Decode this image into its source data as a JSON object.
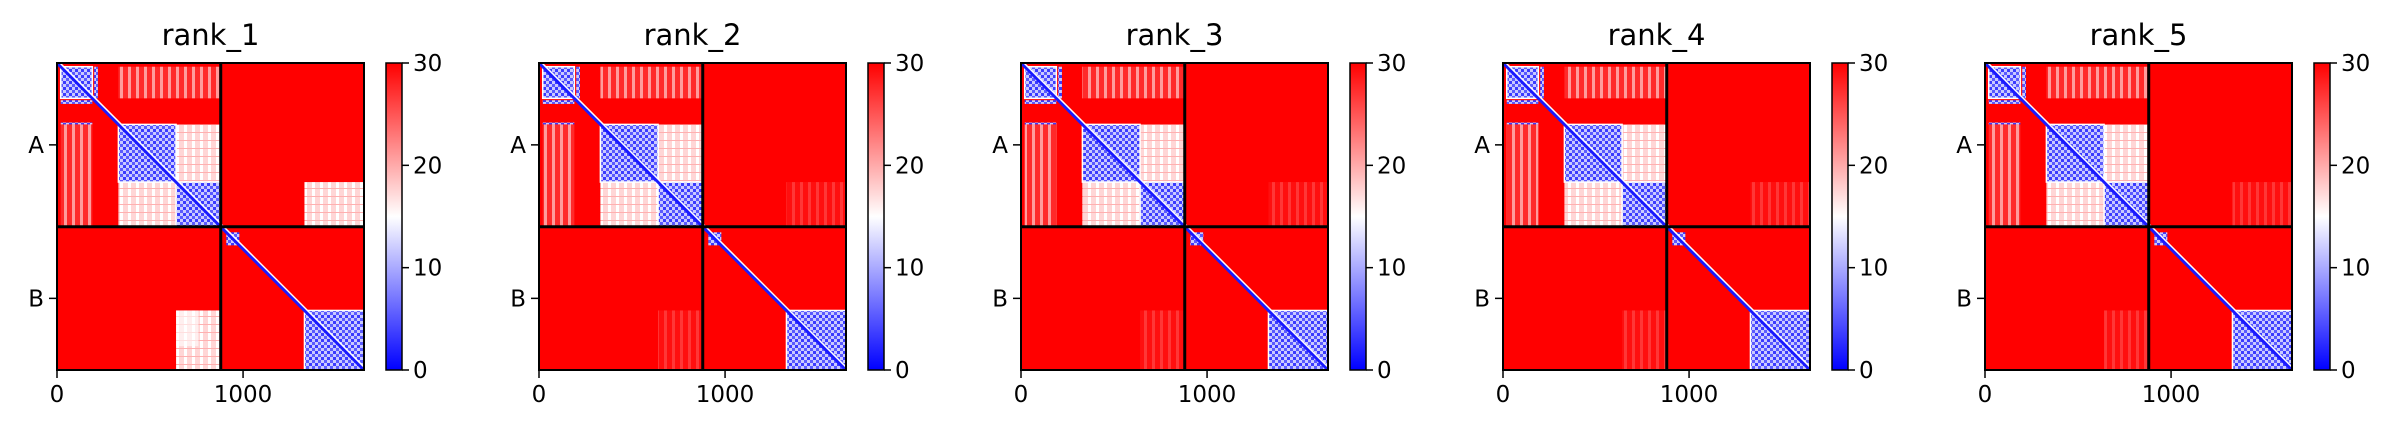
{
  "chart_data": [
    {
      "type": "heatmap",
      "title": "rank_1",
      "xticks": [
        0,
        1000
      ],
      "ylabels": [
        "A",
        "B"
      ],
      "colorbar": {
        "ticks": [
          0,
          10,
          20,
          30
        ],
        "range": [
          0,
          30
        ],
        "cmap": "bwr"
      },
      "chain_boundary": 880,
      "total_length": 1650,
      "blocks_A": [
        [
          20,
          190
        ],
        [
          330,
          640
        ],
        [
          640,
          880
        ]
      ],
      "block_B": [
        1330,
        1650
      ],
      "interchain_light_patch": {
        "x": [
          640,
          880
        ],
        "y": [
          1330,
          1650
        ]
      }
    },
    {
      "type": "heatmap",
      "title": "rank_2",
      "xticks": [
        0,
        1000
      ],
      "ylabels": [
        "A",
        "B"
      ],
      "colorbar": {
        "ticks": [
          0,
          10,
          20,
          30
        ],
        "range": [
          0,
          30
        ],
        "cmap": "bwr"
      },
      "chain_boundary": 880,
      "total_length": 1650,
      "blocks_A": [
        [
          20,
          190
        ],
        [
          330,
          640
        ],
        [
          640,
          880
        ]
      ],
      "block_B": [
        1330,
        1650
      ],
      "interchain_light_patch": null
    },
    {
      "type": "heatmap",
      "title": "rank_3",
      "xticks": [
        0,
        1000
      ],
      "ylabels": [
        "A",
        "B"
      ],
      "colorbar": {
        "ticks": [
          0,
          10,
          20,
          30
        ],
        "range": [
          0,
          30
        ],
        "cmap": "bwr"
      },
      "chain_boundary": 880,
      "total_length": 1650,
      "blocks_A": [
        [
          20,
          190
        ],
        [
          330,
          640
        ],
        [
          640,
          880
        ]
      ],
      "block_B": [
        1330,
        1650
      ],
      "interchain_light_patch": null
    },
    {
      "type": "heatmap",
      "title": "rank_4",
      "xticks": [
        0,
        1000
      ],
      "ylabels": [
        "A",
        "B"
      ],
      "colorbar": {
        "ticks": [
          0,
          10,
          20,
          30
        ],
        "range": [
          0,
          30
        ],
        "cmap": "bwr"
      },
      "chain_boundary": 880,
      "total_length": 1650,
      "blocks_A": [
        [
          20,
          190
        ],
        [
          330,
          640
        ],
        [
          640,
          880
        ]
      ],
      "block_B": [
        1330,
        1650
      ],
      "interchain_light_patch": null
    },
    {
      "type": "heatmap",
      "title": "rank_5",
      "xticks": [
        0,
        1000
      ],
      "ylabels": [
        "A",
        "B"
      ],
      "colorbar": {
        "ticks": [
          0,
          10,
          20,
          30
        ],
        "range": [
          0,
          30
        ],
        "cmap": "bwr"
      },
      "chain_boundary": 880,
      "total_length": 1650,
      "blocks_A": [
        [
          20,
          190
        ],
        [
          330,
          640
        ],
        [
          640,
          880
        ]
      ],
      "block_B": [
        1330,
        1650
      ],
      "interchain_light_patch": null
    }
  ]
}
